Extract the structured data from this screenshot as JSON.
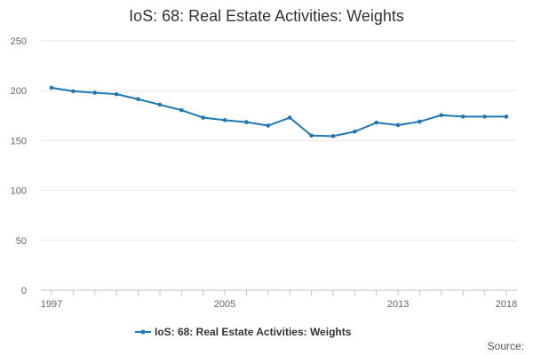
{
  "chart_data": {
    "type": "line",
    "title": "IoS: 68: Real Estate Activities: Weights",
    "xlabel": "",
    "ylabel": "",
    "x": [
      1997,
      1998,
      1999,
      2000,
      2001,
      2002,
      2003,
      2004,
      2005,
      2006,
      2007,
      2008,
      2009,
      2010,
      2011,
      2012,
      2013,
      2014,
      2015,
      2016,
      2017,
      2018
    ],
    "series": [
      {
        "name": "IoS: 68: Real Estate Activities: Weights",
        "color": "#1f77b4",
        "values": [
          203,
          199.5,
          198,
          196.5,
          191.5,
          186,
          180.5,
          173,
          170.5,
          168.5,
          165,
          173,
          155,
          154.5,
          159,
          168,
          165.5,
          169,
          175.5,
          174,
          174,
          174
        ]
      }
    ],
    "ylim": [
      0,
      250
    ],
    "yticks": [
      0,
      50,
      100,
      150,
      200,
      250
    ],
    "xticks": [
      1997,
      2005,
      2013,
      2018
    ],
    "grid": true,
    "legend_position": "bottom-center"
  },
  "footer": {
    "source_label": "Source:"
  }
}
